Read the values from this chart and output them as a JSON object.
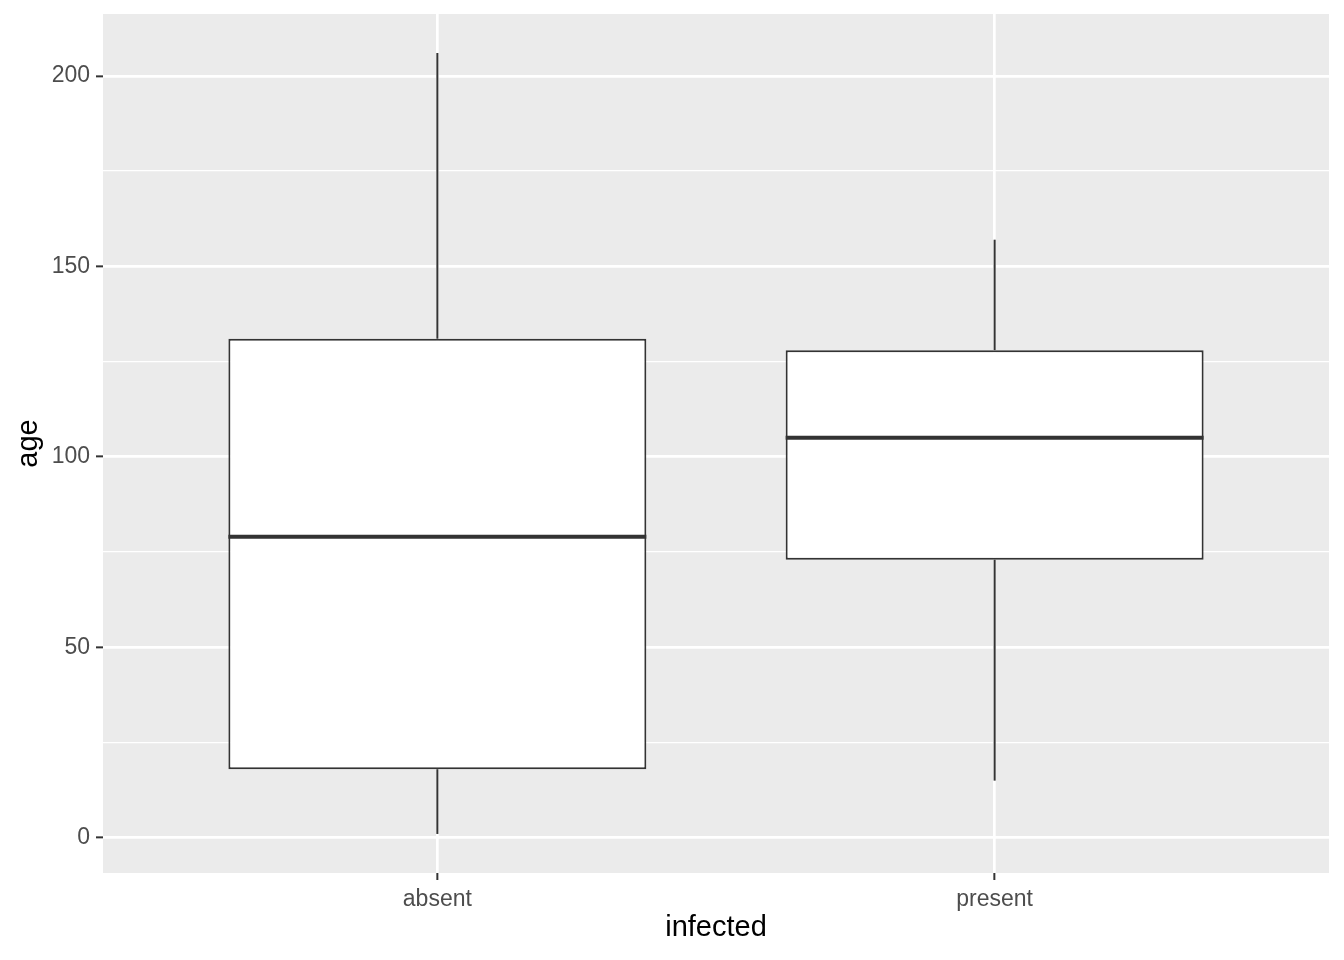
{
  "chart_data": {
    "type": "box",
    "xlabel": "infected",
    "ylabel": "age",
    "categories": [
      "absent",
      "present"
    ],
    "boxes": [
      {
        "low": 1,
        "q1": 18,
        "median": 79,
        "q3": 131,
        "high": 206
      },
      {
        "low": 15,
        "q1": 73,
        "median": 105,
        "q3": 128,
        "high": 157
      }
    ],
    "ylim": [
      -9.25,
      216.25
    ],
    "yticks": [
      0,
      {
        "value": 25,
        "label": null
      },
      50,
      {
        "value": 75,
        "label": null
      },
      100,
      {
        "value": 125,
        "label": null
      },
      150,
      {
        "value": 175,
        "label": null
      },
      200
    ],
    "grid": true
  }
}
